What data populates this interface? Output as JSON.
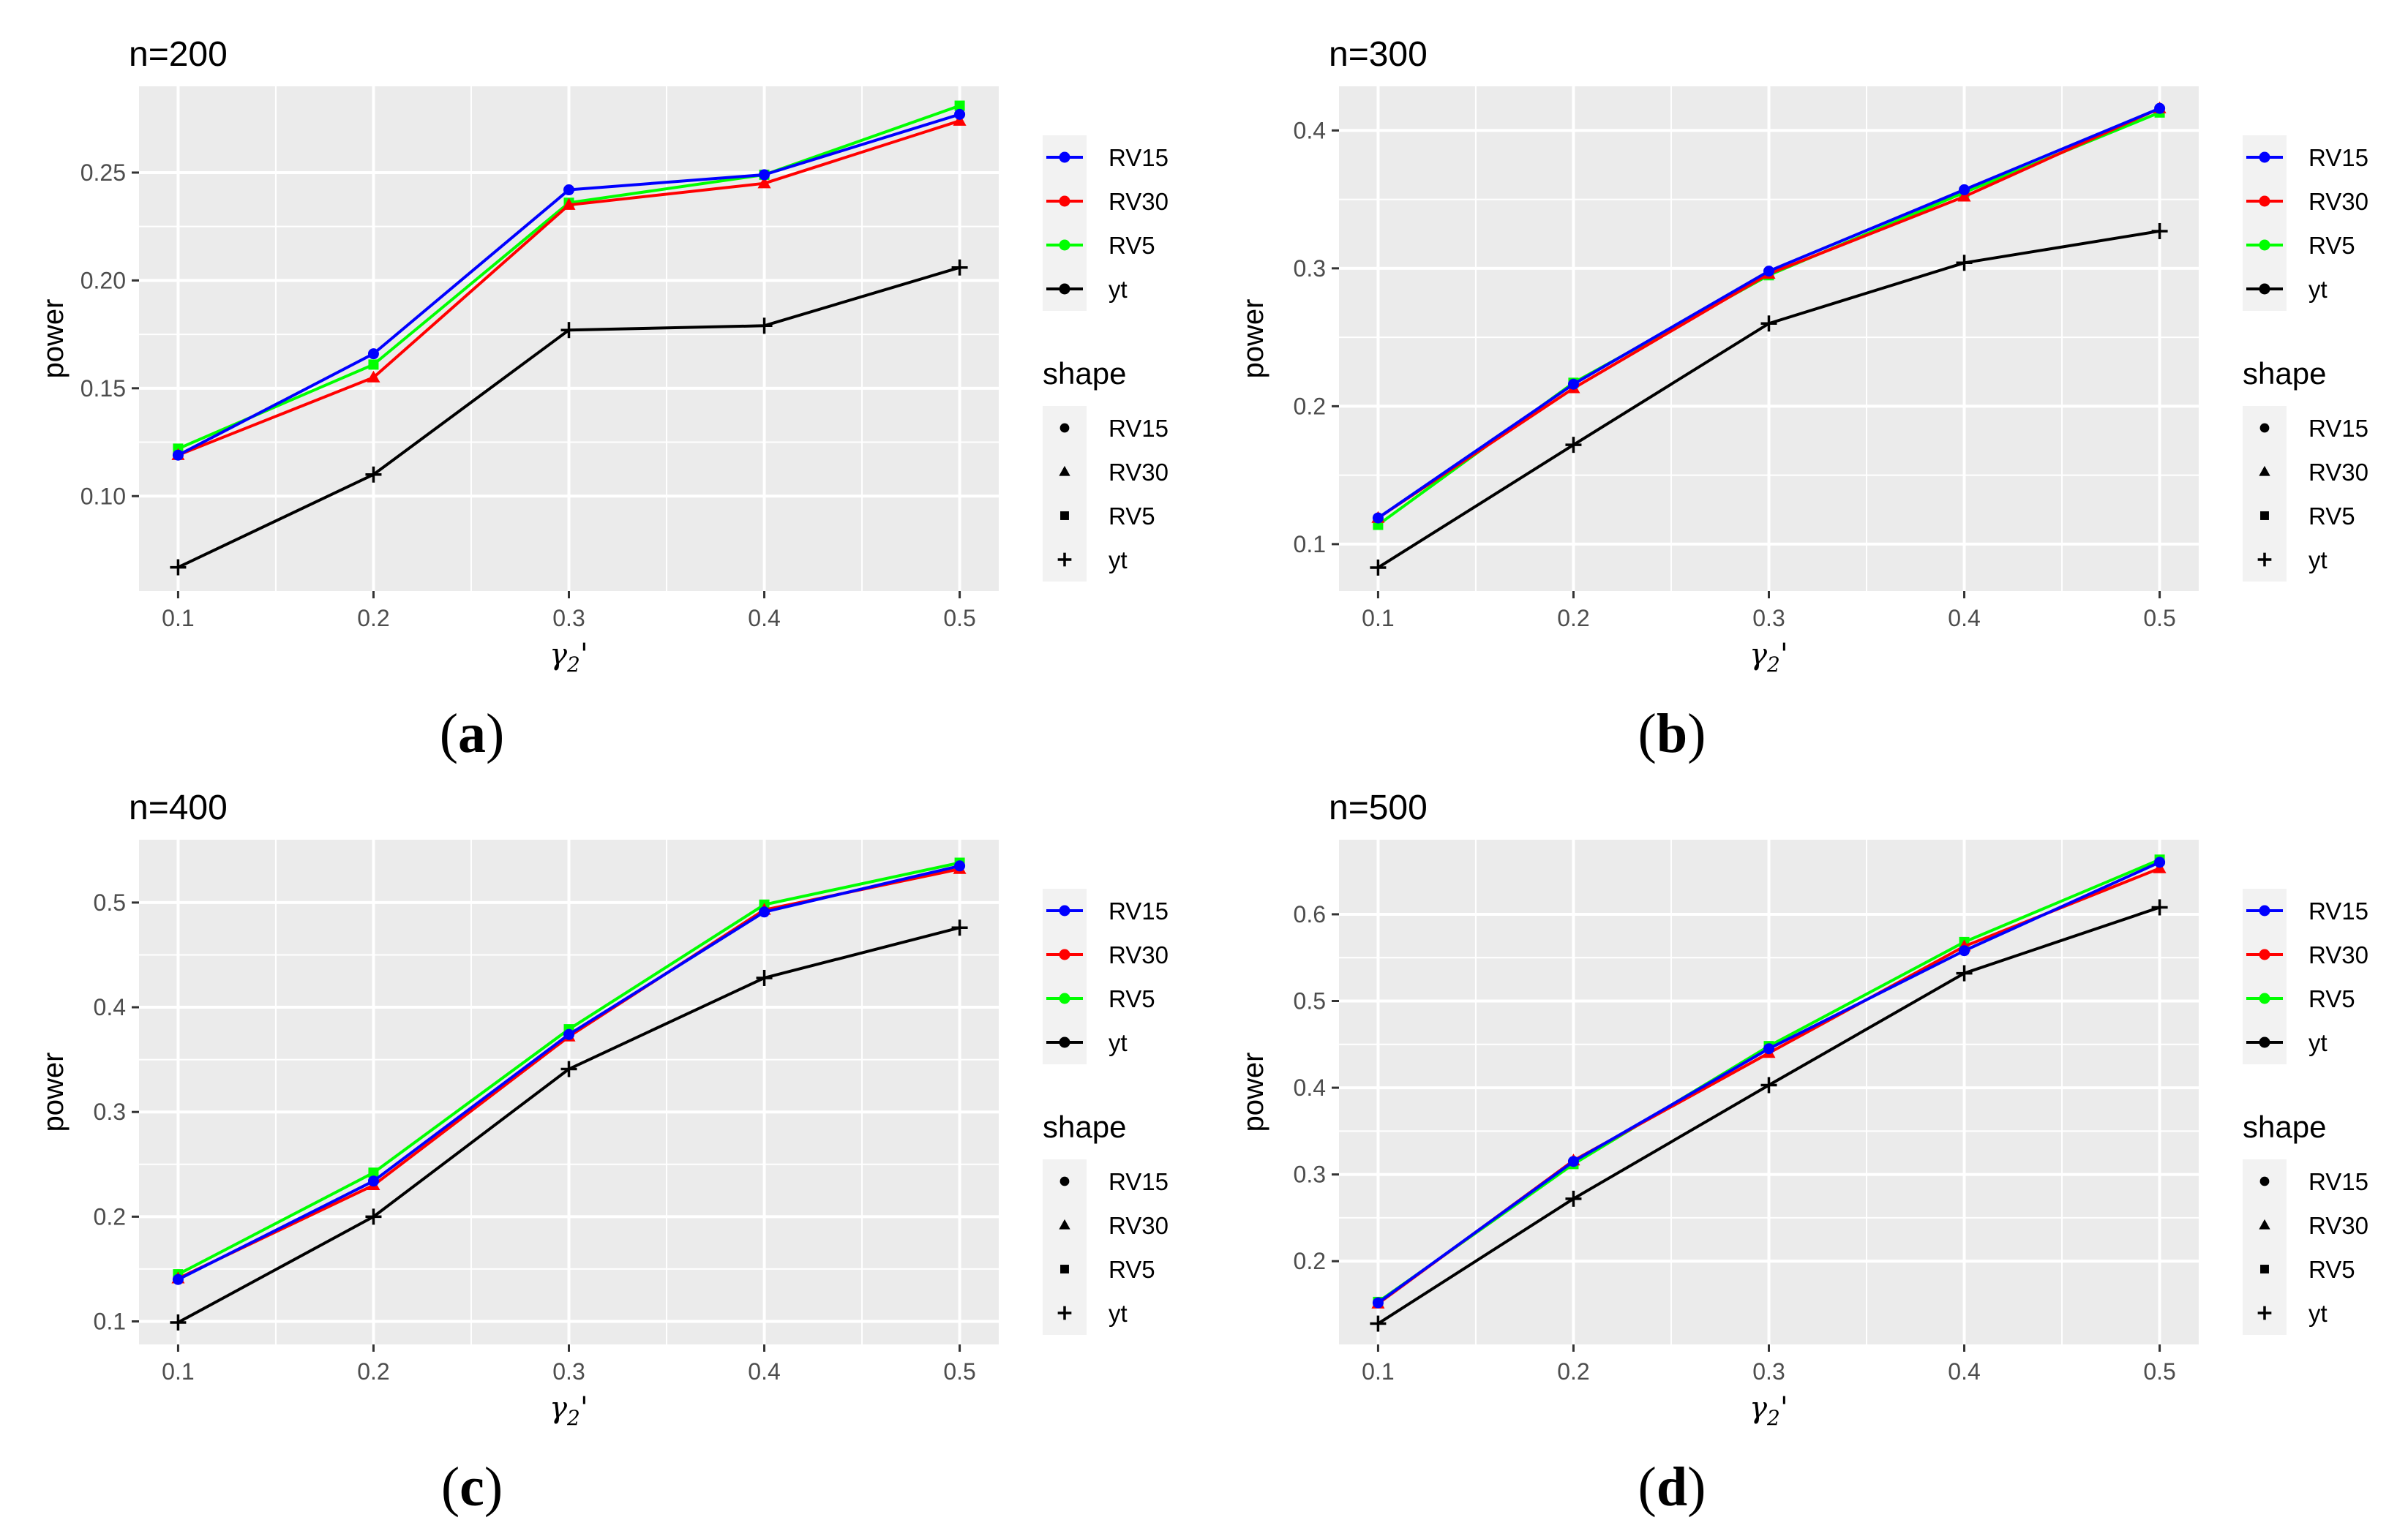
{
  "figure": {
    "legend_color_entries": [
      {
        "label": "RV15",
        "color": "#0000ff"
      },
      {
        "label": "RV30",
        "color": "#ff0000"
      },
      {
        "label": "RV5",
        "color": "#00ff00"
      },
      {
        "label": "yt",
        "color": "#000000"
      }
    ],
    "legend_shape_title": "shape",
    "legend_shape_entries": [
      {
        "label": "RV15",
        "shape": "circle"
      },
      {
        "label": "RV30",
        "shape": "triangle"
      },
      {
        "label": "RV5",
        "shape": "square"
      },
      {
        "label": "yt",
        "shape": "plus"
      }
    ]
  },
  "chart_data": [
    {
      "type": "line",
      "caption": "(a)",
      "title": "n=200",
      "xlabel": "γ2'",
      "ylabel": "power",
      "x": [
        0.1,
        0.2,
        0.3,
        0.4,
        0.5
      ],
      "xticks": [
        "0.1",
        "0.2",
        "0.3",
        "0.4",
        "0.5"
      ],
      "xlim": [
        0.08,
        0.52
      ],
      "yticks": [
        0.1,
        0.15,
        0.2,
        0.25
      ],
      "ytick_labels": [
        "0.10",
        "0.15",
        "0.20",
        "0.25"
      ],
      "ylim": [
        0.056,
        0.29
      ],
      "grid": true,
      "legend": "right",
      "series": [
        {
          "name": "RV15",
          "color": "#0000ff",
          "shape": "circle",
          "values": [
            0.119,
            0.166,
            0.242,
            0.249,
            0.277
          ]
        },
        {
          "name": "RV30",
          "color": "#ff0000",
          "shape": "triangle",
          "values": [
            0.119,
            0.155,
            0.235,
            0.245,
            0.274
          ]
        },
        {
          "name": "RV5",
          "color": "#00ff00",
          "shape": "square",
          "values": [
            0.122,
            0.161,
            0.236,
            0.249,
            0.281
          ]
        },
        {
          "name": "yt",
          "color": "#000000",
          "shape": "plus",
          "values": [
            0.067,
            0.11,
            0.177,
            0.179,
            0.206
          ]
        }
      ]
    },
    {
      "type": "line",
      "caption": "(b)",
      "title": "n=300",
      "xlabel": "γ2'",
      "ylabel": "power",
      "x": [
        0.1,
        0.2,
        0.3,
        0.4,
        0.5
      ],
      "xticks": [
        "0.1",
        "0.2",
        "0.3",
        "0.4",
        "0.5"
      ],
      "xlim": [
        0.08,
        0.52
      ],
      "yticks": [
        0.1,
        0.2,
        0.3,
        0.4
      ],
      "ytick_labels": [
        "0.1",
        "0.2",
        "0.3",
        "0.4"
      ],
      "ylim": [
        0.066,
        0.432
      ],
      "grid": true,
      "legend": "right",
      "series": [
        {
          "name": "RV15",
          "color": "#0000ff",
          "shape": "circle",
          "values": [
            0.119,
            0.216,
            0.298,
            0.357,
            0.416
          ]
        },
        {
          "name": "RV30",
          "color": "#ff0000",
          "shape": "triangle",
          "values": [
            0.119,
            0.213,
            0.296,
            0.352,
            0.416
          ]
        },
        {
          "name": "RV5",
          "color": "#00ff00",
          "shape": "square",
          "values": [
            0.114,
            0.217,
            0.295,
            0.355,
            0.413
          ]
        },
        {
          "name": "yt",
          "color": "#000000",
          "shape": "plus",
          "values": [
            0.083,
            0.172,
            0.26,
            0.304,
            0.327
          ]
        }
      ]
    },
    {
      "type": "line",
      "caption": "(c)",
      "title": "n=400",
      "xlabel": "γ2'",
      "ylabel": "power",
      "x": [
        0.1,
        0.2,
        0.3,
        0.4,
        0.5
      ],
      "xticks": [
        "0.1",
        "0.2",
        "0.3",
        "0.4",
        "0.5"
      ],
      "xlim": [
        0.08,
        0.52
      ],
      "yticks": [
        0.1,
        0.2,
        0.3,
        0.4,
        0.5
      ],
      "ytick_labels": [
        "0.1",
        "0.2",
        "0.3",
        "0.4",
        "0.5"
      ],
      "ylim": [
        0.078,
        0.56
      ],
      "grid": true,
      "legend": "right",
      "series": [
        {
          "name": "RV15",
          "color": "#0000ff",
          "shape": "circle",
          "values": [
            0.14,
            0.234,
            0.374,
            0.491,
            0.535
          ]
        },
        {
          "name": "RV30",
          "color": "#ff0000",
          "shape": "triangle",
          "values": [
            0.141,
            0.23,
            0.372,
            0.493,
            0.532
          ]
        },
        {
          "name": "RV5",
          "color": "#00ff00",
          "shape": "square",
          "values": [
            0.145,
            0.242,
            0.379,
            0.498,
            0.538
          ]
        },
        {
          "name": "yt",
          "color": "#000000",
          "shape": "plus",
          "values": [
            0.099,
            0.2,
            0.341,
            0.428,
            0.476
          ]
        }
      ]
    },
    {
      "type": "line",
      "caption": "(d)",
      "title": "n=500",
      "xlabel": "γ2'",
      "ylabel": "power",
      "x": [
        0.1,
        0.2,
        0.3,
        0.4,
        0.5
      ],
      "xticks": [
        "0.1",
        "0.2",
        "0.3",
        "0.4",
        "0.5"
      ],
      "xlim": [
        0.08,
        0.52
      ],
      "yticks": [
        0.2,
        0.3,
        0.4,
        0.5,
        0.6
      ],
      "ytick_labels": [
        "0.2",
        "0.3",
        "0.4",
        "0.5",
        "0.6"
      ],
      "ylim": [
        0.104,
        0.686
      ],
      "grid": true,
      "legend": "right",
      "series": [
        {
          "name": "RV15",
          "color": "#0000ff",
          "shape": "circle",
          "values": [
            0.152,
            0.315,
            0.445,
            0.558,
            0.66
          ]
        },
        {
          "name": "RV30",
          "color": "#ff0000",
          "shape": "triangle",
          "values": [
            0.151,
            0.316,
            0.44,
            0.563,
            0.653
          ]
        },
        {
          "name": "RV5",
          "color": "#00ff00",
          "shape": "square",
          "values": [
            0.153,
            0.312,
            0.448,
            0.568,
            0.663
          ]
        },
        {
          "name": "yt",
          "color": "#000000",
          "shape": "plus",
          "values": [
            0.128,
            0.272,
            0.403,
            0.532,
            0.608
          ]
        }
      ]
    }
  ]
}
